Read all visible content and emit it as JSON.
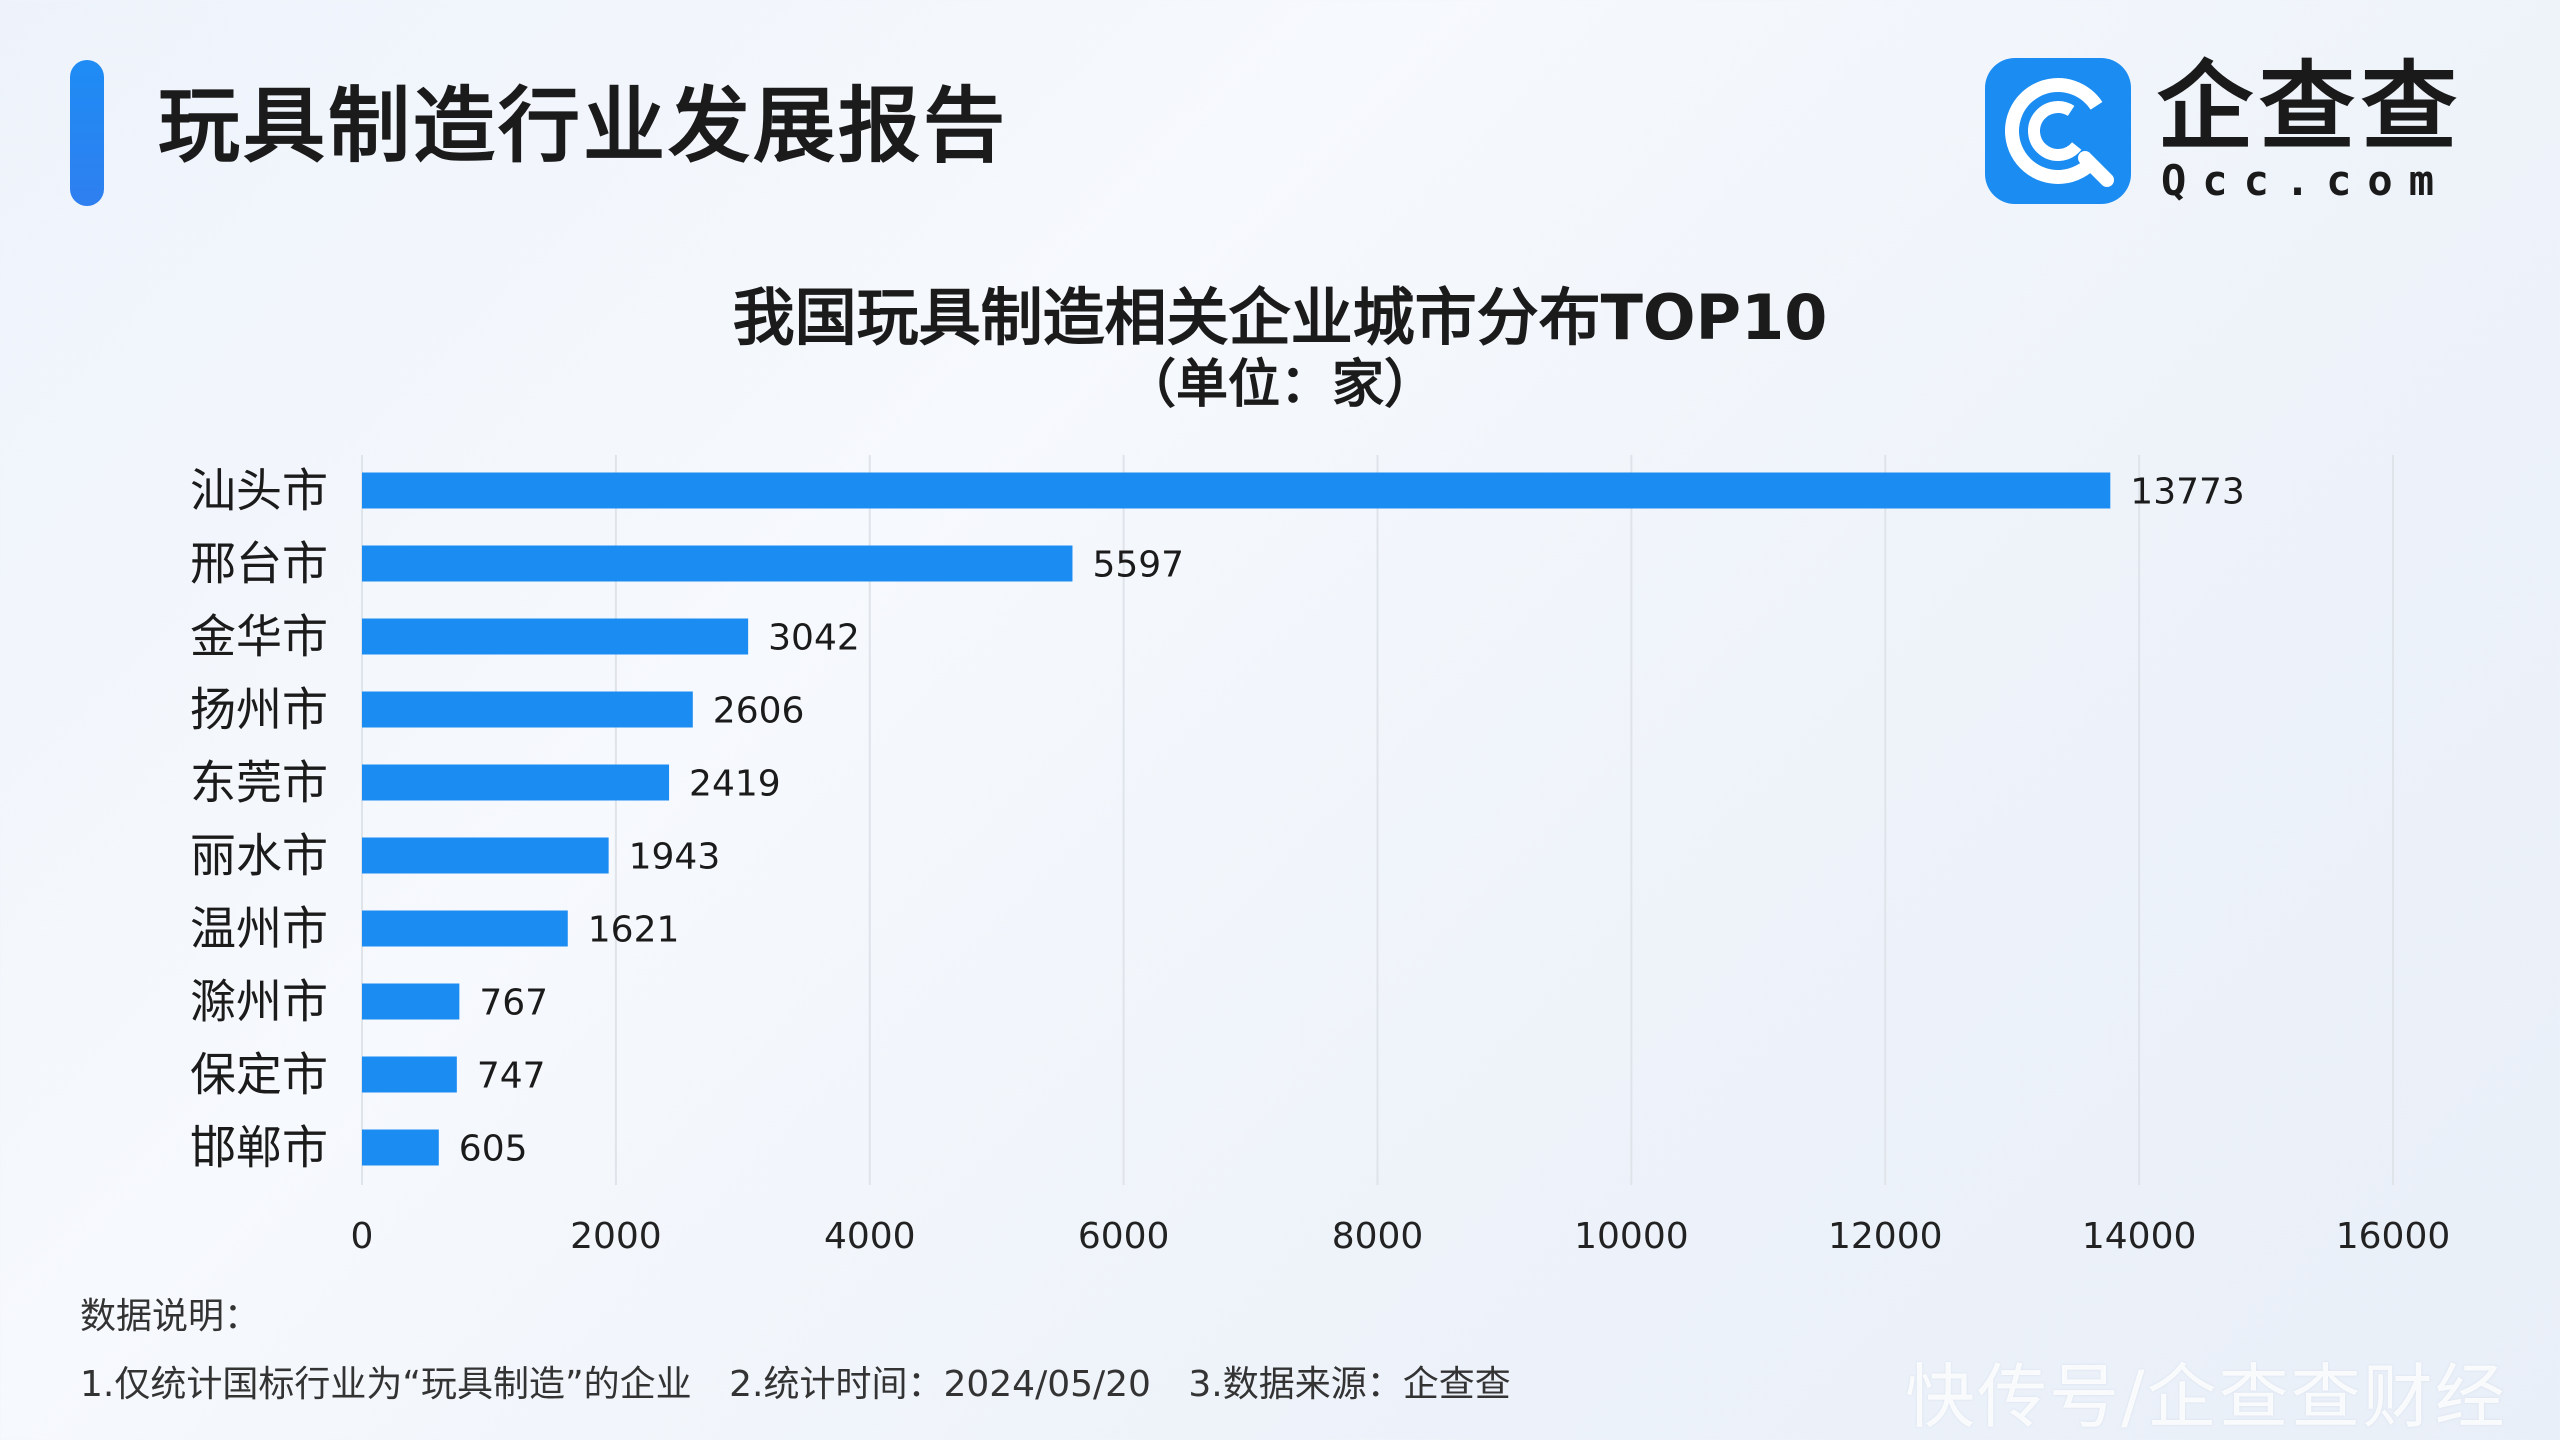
{
  "header": {
    "title": "玩具制造行业发展报告"
  },
  "logo": {
    "name_cn": "企查查",
    "name_en": "Qcc.com"
  },
  "chart_data": {
    "type": "bar",
    "orientation": "horizontal",
    "title": "我国玩具制造相关企业城市分布TOP10",
    "subtitle": "（单位：家）",
    "categories": [
      "汕头市",
      "邢台市",
      "金华市",
      "扬州市",
      "东莞市",
      "丽水市",
      "温州市",
      "滁州市",
      "保定市",
      "邯郸市"
    ],
    "values": [
      13773,
      5597,
      3042,
      2606,
      2419,
      1943,
      1621,
      767,
      747,
      605
    ],
    "xlim": [
      0,
      16000
    ],
    "xticks": [
      0,
      2000,
      4000,
      6000,
      8000,
      10000,
      12000,
      14000,
      16000
    ],
    "grid": "vertical",
    "bar_color": "#1a8cf2",
    "data_labels": true
  },
  "notes": {
    "title": "数据说明：",
    "items": [
      "1.仅统计国标行业为“玩具制造”的企业",
      "2.统计时间：2024/05/20",
      "3.数据来源：企查查"
    ]
  },
  "watermark": "快传号/企查查财经",
  "colors": {
    "accent": "#1a8cf2",
    "grid": "#dfe3ea",
    "text": "#1b1b1b"
  }
}
